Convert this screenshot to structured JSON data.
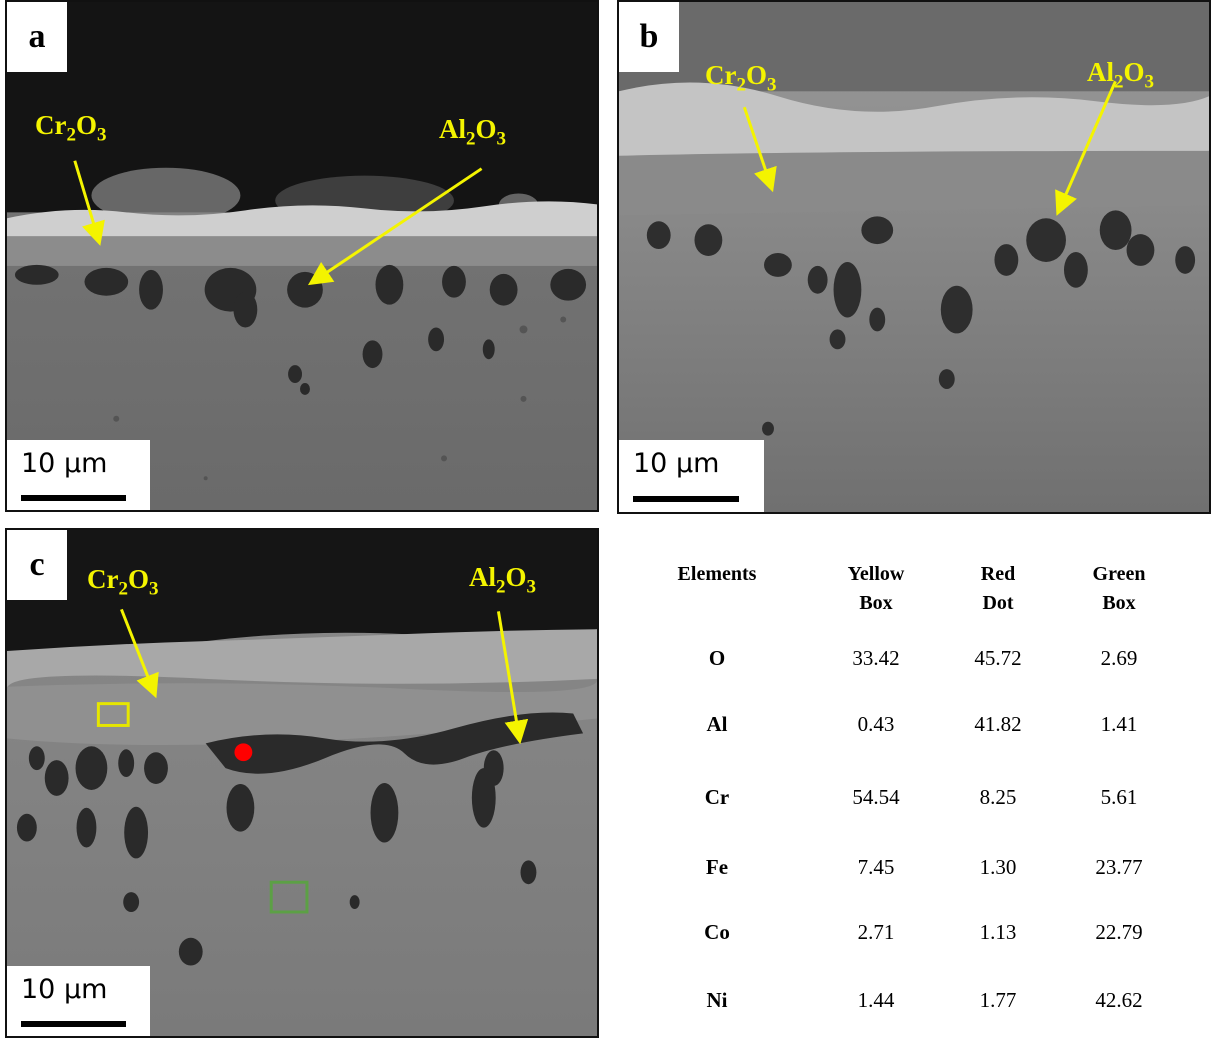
{
  "panels": [
    {
      "label": "a",
      "scale": "10 μm",
      "annotations": [
        {
          "base": "Cr",
          "sub": "2",
          "base2": "O",
          "sub2": "3"
        },
        {
          "base": "Al",
          "sub": "2",
          "base2": "O",
          "sub2": "3"
        }
      ]
    },
    {
      "label": "b",
      "scale": "10 μm",
      "annotations": [
        {
          "base": "Cr",
          "sub": "2",
          "base2": "O",
          "sub2": "3"
        },
        {
          "base": "Al",
          "sub": "2",
          "base2": "O",
          "sub2": "3"
        }
      ]
    },
    {
      "label": "c",
      "scale": "10 μm",
      "annotations": [
        {
          "base": "Cr",
          "sub": "2",
          "base2": "O",
          "sub2": "3"
        },
        {
          "base": "Al",
          "sub": "2",
          "base2": "O",
          "sub2": "3"
        }
      ]
    }
  ],
  "table": {
    "headers": [
      [
        "Elements"
      ],
      [
        "Yellow",
        "Box"
      ],
      [
        "Red",
        "Dot"
      ],
      [
        "Green",
        "Box"
      ]
    ],
    "rows": [
      {
        "element": "O",
        "yellow": "33.42",
        "red": "45.72",
        "green": "2.69"
      },
      {
        "element": "Al",
        "yellow": "0.43",
        "red": "41.82",
        "green": "1.41"
      },
      {
        "element": "Cr",
        "yellow": "54.54",
        "red": "8.25",
        "green": "5.61"
      },
      {
        "element": "Fe",
        "yellow": "7.45",
        "red": "1.30",
        "green": "23.77"
      },
      {
        "element": "Co",
        "yellow": "2.71",
        "red": "1.13",
        "green": "22.79"
      },
      {
        "element": "Ni",
        "yellow": "1.44",
        "red": "1.77",
        "green": "42.62"
      }
    ]
  },
  "colors": {
    "annotation": "#f4f400",
    "yellow_box": "#e6e600",
    "red_dot": "#ff0000",
    "green_box": "#5ca045"
  }
}
